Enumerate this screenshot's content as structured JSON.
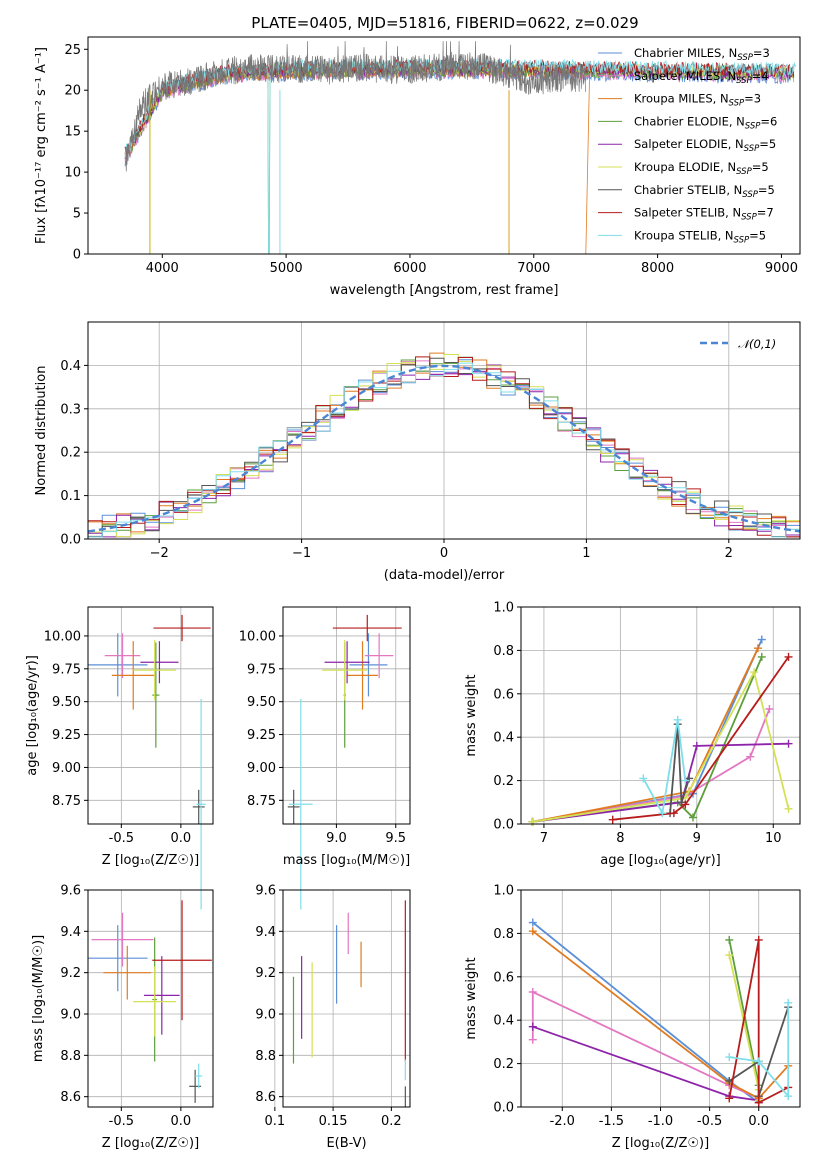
{
  "title": "PLATE=0405, MJD=51816, FIBERID=0622, z=0.029",
  "colors": {
    "Chabrier MILES": "#5b8fd8",
    "Salpeter MILES": "#e377c2",
    "Kroupa MILES": "#e07b20",
    "Chabrier ELODIE": "#5d9e3c",
    "Salpeter ELODIE": "#8e24aa",
    "Kroupa ELODIE": "#d4e157",
    "Chabrier STELIB": "#555555",
    "Salpeter STELIB": "#b71c1c",
    "Kroupa STELIB": "#80deea"
  },
  "chart_data": [
    {
      "type": "line",
      "panel": "spectrum",
      "xlabel": "wavelength [Angstrom, rest frame]",
      "ylabel": "Flux [fλ10⁻¹⁷ erg cm⁻² s⁻¹ A⁻¹]",
      "xlim": [
        3400,
        9150
      ],
      "ylim": [
        0,
        26.5
      ],
      "xticks": [
        4000,
        5000,
        6000,
        7000,
        8000,
        9000
      ],
      "yticks": [
        0,
        5,
        10,
        15,
        20,
        25
      ],
      "legend": [
        {
          "name": "Chabrier MILES",
          "nssp": "3"
        },
        {
          "name": "Salpeter MILES",
          "nssp": "4"
        },
        {
          "name": "Kroupa MILES",
          "nssp": "3"
        },
        {
          "name": "Chabrier ELODIE",
          "nssp": "6"
        },
        {
          "name": "Salpeter ELODIE",
          "nssp": "5"
        },
        {
          "name": "Kroupa ELODIE",
          "nssp": "5"
        },
        {
          "name": "Chabrier STELIB",
          "nssp": "5"
        },
        {
          "name": "Salpeter STELIB",
          "nssp": "7"
        },
        {
          "name": "Kroupa STELIB",
          "nssp": "5"
        }
      ],
      "data_trend": {
        "x": [
          3700,
          3800,
          3900,
          4000,
          4200,
          4400,
          4600,
          4800,
          5000,
          5200,
          5400,
          5600,
          5800,
          6000,
          6200,
          6400,
          6600,
          6800,
          7000,
          7200,
          7400
        ],
        "y": [
          11,
          17,
          19.5,
          20.5,
          21,
          22,
          22.5,
          22.8,
          22.5,
          22.6,
          22.4,
          22.8,
          22.5,
          22.5,
          22.8,
          23,
          22.8,
          22,
          21,
          21.5,
          21.5
        ]
      },
      "model_trend": {
        "x": [
          3700,
          4000,
          4500,
          5000,
          5500,
          6000,
          6500,
          7000,
          7500,
          8000,
          8500,
          9000,
          9100
        ],
        "y": [
          12,
          20,
          22,
          22.4,
          22.5,
          22.6,
          22.6,
          22.5,
          22.4,
          22.3,
          22.2,
          22.1,
          22.1
        ]
      }
    },
    {
      "type": "line",
      "panel": "residual histogram",
      "xlabel": "(data-model)/error",
      "ylabel": "Normed distribution",
      "xlim": [
        -2.5,
        2.5
      ],
      "ylim": [
        0,
        0.5
      ],
      "xticks": [
        -2,
        -1,
        0,
        1,
        2
      ],
      "yticks": [
        0.0,
        0.1,
        0.2,
        0.3,
        0.4
      ],
      "series": [
        {
          "name": "𝒩(0,1)",
          "style": "dashed",
          "values": "gaussian(0,1)"
        }
      ]
    },
    {
      "type": "scatter",
      "panel": "age vs Z",
      "xlabel": "Z [log₁₀(Z/Z☉)]",
      "ylabel": "age [log₁₀(age/yr)]",
      "xlim": [
        -0.78,
        0.27
      ],
      "ylim": [
        8.57,
        10.22
      ],
      "xticks": [
        -0.5,
        0.0
      ],
      "yticks": [
        8.75,
        9.0,
        9.25,
        9.5,
        9.75,
        10.0
      ],
      "points": [
        {
          "model": "Chabrier MILES",
          "x": -0.53,
          "y": 9.78,
          "xerr": 0.25,
          "yerr": 0.24
        },
        {
          "model": "Salpeter MILES",
          "x": -0.49,
          "y": 9.85,
          "xerr": 0.15,
          "yerr": 0.17
        },
        {
          "model": "Kroupa MILES",
          "x": -0.4,
          "y": 9.7,
          "xerr": 0.18,
          "yerr": 0.26
        },
        {
          "model": "Chabrier ELODIE",
          "x": -0.21,
          "y": 9.55,
          "xerr": 0.03,
          "yerr": 0.4
        },
        {
          "model": "Salpeter ELODIE",
          "x": -0.18,
          "y": 9.8,
          "xerr": 0.16,
          "yerr": 0.16
        },
        {
          "model": "Kroupa ELODIE",
          "x": -0.22,
          "y": 9.74,
          "xerr": 0.18,
          "yerr": 0.23
        },
        {
          "model": "Chabrier STELIB",
          "x": 0.15,
          "y": 8.7,
          "xerr": 0.05,
          "yerr": 0.13
        },
        {
          "model": "Salpeter STELIB",
          "x": 0.01,
          "y": 10.06,
          "xerr": 0.24,
          "yerr": 0.1
        },
        {
          "model": "Kroupa STELIB",
          "x": 0.17,
          "y": 8.72,
          "xerr": 0.04,
          "yerr": 0.8
        }
      ]
    },
    {
      "type": "scatter",
      "panel": "age vs mass",
      "xlabel": "mass [log₁₀(M/M☉)]",
      "xlim": [
        8.55,
        9.62
      ],
      "ylim": [
        8.57,
        10.22
      ],
      "xticks": [
        9.0,
        9.5
      ],
      "yticks": [
        8.75,
        9.0,
        9.25,
        9.5,
        9.75,
        10.0
      ],
      "points": [
        {
          "model": "Chabrier MILES",
          "x": 9.27,
          "y": 9.78,
          "xerr": 0.16,
          "yerr": 0.24
        },
        {
          "model": "Salpeter MILES",
          "x": 9.36,
          "y": 9.85,
          "xerr": 0.12,
          "yerr": 0.17
        },
        {
          "model": "Kroupa MILES",
          "x": 9.22,
          "y": 9.7,
          "xerr": 0.13,
          "yerr": 0.26
        },
        {
          "model": "Chabrier ELODIE",
          "x": 9.07,
          "y": 9.55,
          "xerr": 0.01,
          "yerr": 0.4
        },
        {
          "model": "Salpeter ELODIE",
          "x": 9.09,
          "y": 9.8,
          "xerr": 0.19,
          "yerr": 0.16
        },
        {
          "model": "Kroupa ELODIE",
          "x": 9.07,
          "y": 9.74,
          "xerr": 0.19,
          "yerr": 0.23
        },
        {
          "model": "Chabrier STELIB",
          "x": 8.64,
          "y": 8.7,
          "xerr": 0.05,
          "yerr": 0.13
        },
        {
          "model": "Salpeter STELIB",
          "x": 9.26,
          "y": 10.06,
          "xerr": 0.29,
          "yerr": 0.1
        },
        {
          "model": "Kroupa STELIB",
          "x": 8.7,
          "y": 8.72,
          "xerr": 0.1,
          "yerr": 0.8
        }
      ]
    },
    {
      "type": "line",
      "panel": "mass weight vs age",
      "xlabel": "age [log₁₀(age/yr)]",
      "ylabel": "mass weight",
      "xlim": [
        6.7,
        10.35
      ],
      "ylim": [
        0,
        1.0
      ],
      "xticks": [
        7,
        8,
        9,
        10
      ],
      "yticks": [
        0.0,
        0.2,
        0.4,
        0.6,
        0.8,
        1.0
      ],
      "series": [
        {
          "name": "Chabrier MILES",
          "x": [
            6.85,
            8.95,
            9.85
          ],
          "y": [
            0.01,
            0.14,
            0.85
          ]
        },
        {
          "name": "Salpeter MILES",
          "x": [
            6.85,
            8.85,
            9.7,
            9.95
          ],
          "y": [
            0.01,
            0.13,
            0.31,
            0.53
          ]
        },
        {
          "name": "Kroupa MILES",
          "x": [
            6.85,
            8.9,
            9.8
          ],
          "y": [
            0.01,
            0.15,
            0.81
          ]
        },
        {
          "name": "Chabrier ELODIE",
          "x": [
            6.85,
            8.75,
            8.95,
            9.85
          ],
          "y": [
            0.01,
            0.1,
            0.03,
            0.77
          ]
        },
        {
          "name": "Salpeter ELODIE",
          "x": [
            6.85,
            8.8,
            9.0,
            10.2
          ],
          "y": [
            0.01,
            0.1,
            0.36,
            0.37
          ]
        },
        {
          "name": "Kroupa ELODIE",
          "x": [
            6.85,
            8.85,
            9.75,
            10.2
          ],
          "y": [
            0.01,
            0.12,
            0.7,
            0.07
          ]
        },
        {
          "name": "Chabrier STELIB",
          "x": [
            8.65,
            8.75,
            8.8,
            8.9
          ],
          "y": [
            0.05,
            0.46,
            0.1,
            0.21
          ]
        },
        {
          "name": "Salpeter STELIB",
          "x": [
            7.9,
            8.7,
            8.85,
            10.2
          ],
          "y": [
            0.02,
            0.05,
            0.09,
            0.77
          ]
        },
        {
          "name": "Kroupa STELIB",
          "x": [
            8.3,
            8.55,
            8.75,
            8.85
          ],
          "y": [
            0.21,
            0.05,
            0.48,
            0.2
          ]
        }
      ]
    },
    {
      "type": "scatter",
      "panel": "mass vs Z",
      "xlabel": "Z [log₁₀(Z/Z☉)]",
      "ylabel": "mass [log₁₀(M/M☉)]",
      "xlim": [
        -0.78,
        0.27
      ],
      "ylim": [
        8.55,
        9.6
      ],
      "xticks": [
        -0.5,
        0.0
      ],
      "yticks": [
        8.6,
        8.8,
        9.0,
        9.2,
        9.4,
        9.6
      ],
      "points": [
        {
          "model": "Chabrier MILES",
          "x": -0.53,
          "y": 9.27,
          "xerr": 0.25,
          "yerr": 0.16
        },
        {
          "model": "Salpeter MILES",
          "x": -0.49,
          "y": 9.36,
          "xerr": 0.26,
          "yerr": 0.13
        },
        {
          "model": "Kroupa MILES",
          "x": -0.45,
          "y": 9.2,
          "xerr": 0.2,
          "yerr": 0.13
        },
        {
          "model": "Chabrier ELODIE",
          "x": -0.22,
          "y": 9.07,
          "xerr": 0.02,
          "yerr": 0.3
        },
        {
          "model": "Salpeter ELODIE",
          "x": -0.16,
          "y": 9.09,
          "xerr": 0.15,
          "yerr": 0.19
        },
        {
          "model": "Kroupa ELODIE",
          "x": -0.22,
          "y": 9.06,
          "xerr": 0.18,
          "yerr": 0.17
        },
        {
          "model": "Chabrier STELIB",
          "x": 0.12,
          "y": 8.65,
          "xerr": 0.05,
          "yerr": 0.08
        },
        {
          "model": "Salpeter STELIB",
          "x": 0.01,
          "y": 9.26,
          "xerr": 0.25,
          "yerr": 0.29
        },
        {
          "model": "Kroupa STELIB",
          "x": 0.15,
          "y": 8.7,
          "xerr": 0.03,
          "yerr": 0.06
        }
      ]
    },
    {
      "type": "scatter",
      "panel": "mass vs E(B-V)",
      "xlabel": "E(B-V)",
      "xlim": [
        0.107,
        0.216
      ],
      "ylim": [
        8.55,
        9.6
      ],
      "xticks": [
        0.1,
        0.15,
        0.2
      ],
      "yticks": [
        8.6,
        8.8,
        9.0,
        9.2,
        9.4,
        9.6
      ],
      "points": [
        {
          "model": "Chabrier MILES",
          "x": 0.153,
          "y": 9.24,
          "yerr": 0.19
        },
        {
          "model": "Salpeter MILES",
          "x": 0.163,
          "y": 9.39,
          "yerr": 0.1
        },
        {
          "model": "Kroupa MILES",
          "x": 0.174,
          "y": 9.24,
          "yerr": 0.11
        },
        {
          "model": "Chabrier ELODIE",
          "x": 0.116,
          "y": 8.97,
          "yerr": 0.21
        },
        {
          "model": "Salpeter ELODIE",
          "x": 0.123,
          "y": 9.08,
          "yerr": 0.2
        },
        {
          "model": "Kroupa ELODIE",
          "x": 0.132,
          "y": 9.02,
          "yerr": 0.23
        },
        {
          "model": "Chabrier STELIB",
          "x": 0.212,
          "y": 8.6,
          "yerr": 0.05
        },
        {
          "model": "Salpeter STELIB",
          "x": 0.212,
          "y": 9.16,
          "yerr": 0.39
        },
        {
          "model": "Kroupa STELIB",
          "x": 0.212,
          "y": 8.73,
          "yerr": 0.05
        }
      ]
    },
    {
      "type": "line",
      "panel": "mass weight vs Z",
      "xlabel": "Z [log₁₀(Z/Z☉)]",
      "ylabel": "mass weight",
      "xlim": [
        -2.42,
        0.42
      ],
      "ylim": [
        0,
        1.0
      ],
      "xticks": [
        -2.0,
        -1.5,
        -1.0,
        -0.5,
        0.0
      ],
      "yticks": [
        0.0,
        0.2,
        0.4,
        0.6,
        0.8,
        1.0
      ],
      "series": [
        {
          "name": "Chabrier MILES",
          "x": [
            -2.3,
            -0.3,
            0.0
          ],
          "y": [
            0.85,
            0.12,
            0.02
          ]
        },
        {
          "name": "Salpeter MILES",
          "x": [
            -2.3,
            -2.3,
            -0.3,
            0.0
          ],
          "y": [
            0.31,
            0.53,
            0.1,
            0.04
          ]
        },
        {
          "name": "Kroupa MILES",
          "x": [
            -2.3,
            -0.3,
            0.0,
            0.3
          ],
          "y": [
            0.81,
            0.11,
            0.04,
            0.19
          ]
        },
        {
          "name": "Chabrier ELODIE",
          "x": [
            -0.3,
            0.0,
            0.0
          ],
          "y": [
            0.77,
            0.1,
            0.05
          ]
        },
        {
          "name": "Salpeter ELODIE",
          "x": [
            -2.3,
            -0.3,
            0.0
          ],
          "y": [
            0.37,
            0.05,
            0.03
          ]
        },
        {
          "name": "Kroupa ELODIE",
          "x": [
            -0.3,
            0.0,
            0.0
          ],
          "y": [
            0.7,
            0.08,
            0.03
          ]
        },
        {
          "name": "Chabrier STELIB",
          "x": [
            -0.3,
            0.0,
            0.0,
            0.3
          ],
          "y": [
            0.12,
            0.21,
            0.05,
            0.46
          ]
        },
        {
          "name": "Salpeter STELIB",
          "x": [
            -0.3,
            0.0,
            0.0,
            0.3
          ],
          "y": [
            0.04,
            0.77,
            0.02,
            0.09
          ]
        },
        {
          "name": "Kroupa STELIB",
          "x": [
            -0.3,
            0.0,
            0.3,
            0.3
          ],
          "y": [
            0.23,
            0.21,
            0.05,
            0.48
          ]
        }
      ]
    }
  ]
}
